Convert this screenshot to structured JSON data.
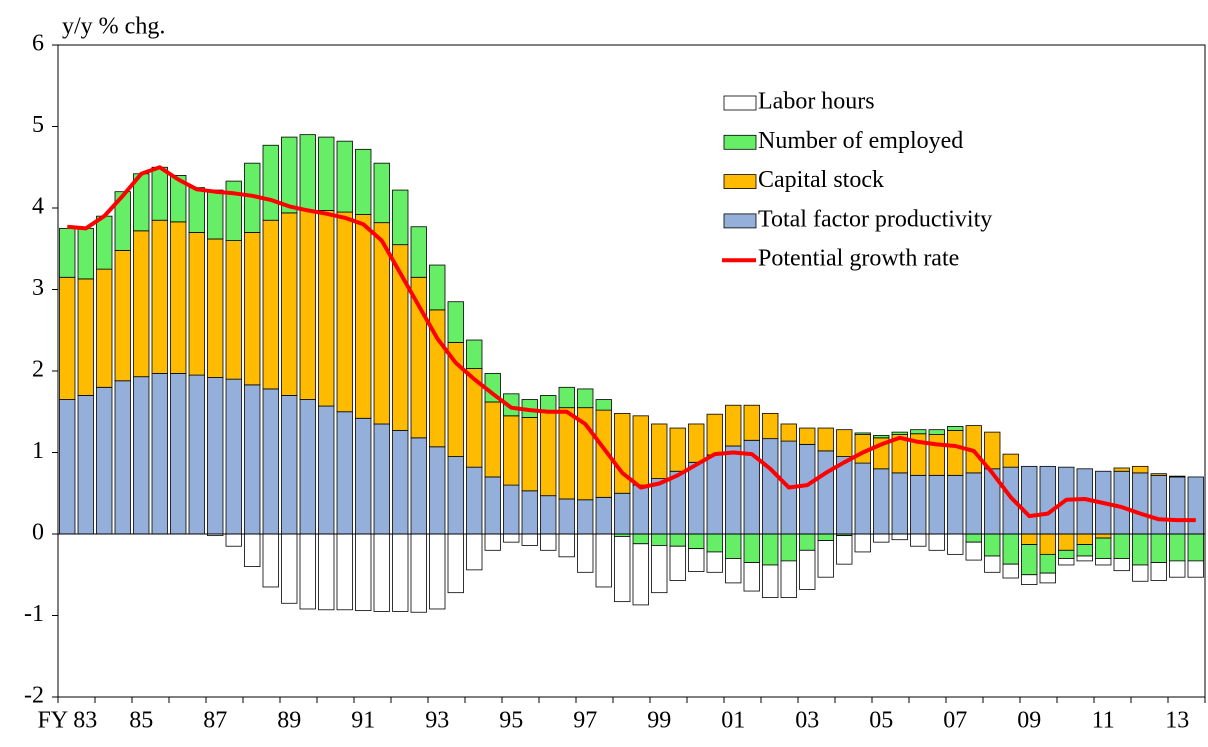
{
  "chart_data": {
    "type": "bar",
    "stacked": true,
    "ylabel": "y/y % chg.",
    "ylim": [
      -2,
      6
    ],
    "yticks": [
      -2,
      -1,
      0,
      1,
      2,
      3,
      4,
      5,
      6
    ],
    "legend": "top-right",
    "categories": [
      "FY 83",
      null,
      null,
      null,
      "85",
      null,
      null,
      null,
      "87",
      null,
      null,
      null,
      "89",
      null,
      null,
      null,
      "91",
      null,
      null,
      null,
      "93",
      null,
      null,
      null,
      "95",
      null,
      null,
      null,
      "97",
      null,
      null,
      null,
      "99",
      null,
      null,
      null,
      "01",
      null,
      null,
      null,
      "03",
      null,
      null,
      null,
      "05",
      null,
      null,
      null,
      "07",
      null,
      null,
      null,
      "09",
      null,
      null,
      null,
      "11",
      null,
      null,
      null,
      "13",
      null
    ],
    "series": [
      {
        "name": "Labor hours",
        "color": "#ffffff",
        "values": [
          0,
          0,
          0,
          0,
          0,
          0,
          0,
          0,
          -0.02,
          -0.15,
          -0.4,
          -0.65,
          -0.85,
          -0.92,
          -0.93,
          -0.93,
          -0.94,
          -0.95,
          -0.95,
          -0.96,
          -0.92,
          -0.72,
          -0.44,
          -0.2,
          -0.1,
          -0.14,
          -0.2,
          -0.28,
          -0.47,
          -0.65,
          -0.8,
          -0.75,
          -0.58,
          -0.42,
          -0.28,
          -0.25,
          -0.3,
          -0.35,
          -0.4,
          -0.45,
          -0.48,
          -0.45,
          -0.35,
          -0.22,
          -0.1,
          -0.07,
          -0.15,
          -0.2,
          -0.25,
          -0.22,
          -0.2,
          -0.17,
          -0.12,
          -0.12,
          -0.08,
          -0.06,
          -0.08,
          -0.15,
          -0.2,
          -0.22,
          -0.2,
          -0.2
        ]
      },
      {
        "name": "Number of employed",
        "color": "#66ee66",
        "values": [
          0.6,
          0.62,
          0.65,
          0.72,
          0.7,
          0.65,
          0.57,
          0.55,
          0.6,
          0.73,
          0.85,
          0.92,
          0.93,
          0.93,
          0.9,
          0.87,
          0.8,
          0.73,
          0.67,
          0.62,
          0.55,
          0.5,
          0.35,
          0.35,
          0.27,
          0.22,
          0.2,
          0.25,
          0.23,
          0.13,
          -0.03,
          -0.12,
          -0.14,
          -0.15,
          -0.18,
          -0.22,
          -0.3,
          -0.35,
          -0.38,
          -0.33,
          -0.2,
          -0.08,
          -0.02,
          0.02,
          0.03,
          0.03,
          0.05,
          0.06,
          0.05,
          -0.1,
          -0.27,
          -0.37,
          -0.37,
          -0.23,
          -0.1,
          -0.14,
          -0.25,
          -0.3,
          -0.38,
          -0.35,
          -0.33,
          -0.33
        ]
      },
      {
        "name": "Capital stock",
        "color": "#ffbb00",
        "values": [
          1.5,
          1.43,
          1.45,
          1.6,
          1.79,
          1.88,
          1.86,
          1.75,
          1.7,
          1.7,
          1.87,
          2.07,
          2.24,
          2.32,
          2.4,
          2.45,
          2.5,
          2.47,
          2.28,
          1.97,
          1.68,
          1.4,
          1.21,
          0.92,
          0.85,
          0.9,
          1.03,
          1.12,
          1.13,
          1.07,
          0.98,
          0.85,
          0.67,
          0.53,
          0.47,
          0.5,
          0.5,
          0.43,
          0.31,
          0.21,
          0.2,
          0.28,
          0.33,
          0.35,
          0.38,
          0.47,
          0.51,
          0.5,
          0.55,
          0.58,
          0.45,
          0.16,
          -0.13,
          -0.25,
          -0.2,
          -0.13,
          -0.05,
          0.04,
          0.08,
          0.02,
          0.01,
          0
        ]
      },
      {
        "name": "Total factor productivity",
        "color": "#94b0da",
        "values": [
          1.65,
          1.7,
          1.8,
          1.88,
          1.93,
          1.97,
          1.97,
          1.95,
          1.92,
          1.9,
          1.83,
          1.78,
          1.7,
          1.65,
          1.57,
          1.5,
          1.42,
          1.35,
          1.27,
          1.18,
          1.07,
          0.95,
          0.82,
          0.7,
          0.6,
          0.53,
          0.47,
          0.43,
          0.42,
          0.45,
          0.5,
          0.6,
          0.68,
          0.77,
          0.88,
          0.97,
          1.08,
          1.15,
          1.17,
          1.14,
          1.1,
          1.02,
          0.95,
          0.87,
          0.8,
          0.75,
          0.72,
          0.72,
          0.72,
          0.75,
          0.8,
          0.82,
          0.83,
          0.83,
          0.82,
          0.8,
          0.77,
          0.77,
          0.75,
          0.72,
          0.7,
          0.7
        ]
      },
      {
        "name": "Potential growth rate",
        "type": "line",
        "color": "#ff0000",
        "values": [
          3.77,
          3.75,
          3.9,
          4.15,
          4.42,
          4.5,
          4.35,
          4.23,
          4.2,
          4.18,
          4.15,
          4.1,
          4.02,
          3.97,
          3.93,
          3.88,
          3.8,
          3.6,
          3.2,
          2.8,
          2.4,
          2.1,
          1.9,
          1.72,
          1.55,
          1.52,
          1.5,
          1.5,
          1.35,
          1.05,
          0.75,
          0.57,
          0.62,
          0.72,
          0.85,
          0.98,
          1.0,
          0.98,
          0.8,
          0.57,
          0.6,
          0.75,
          0.88,
          1.0,
          1.1,
          1.18,
          1.13,
          1.1,
          1.08,
          1.02,
          0.75,
          0.45,
          0.22,
          0.25,
          0.42,
          0.43,
          0.38,
          0.33,
          0.25,
          0.18,
          0.17,
          0.17
        ]
      }
    ]
  }
}
